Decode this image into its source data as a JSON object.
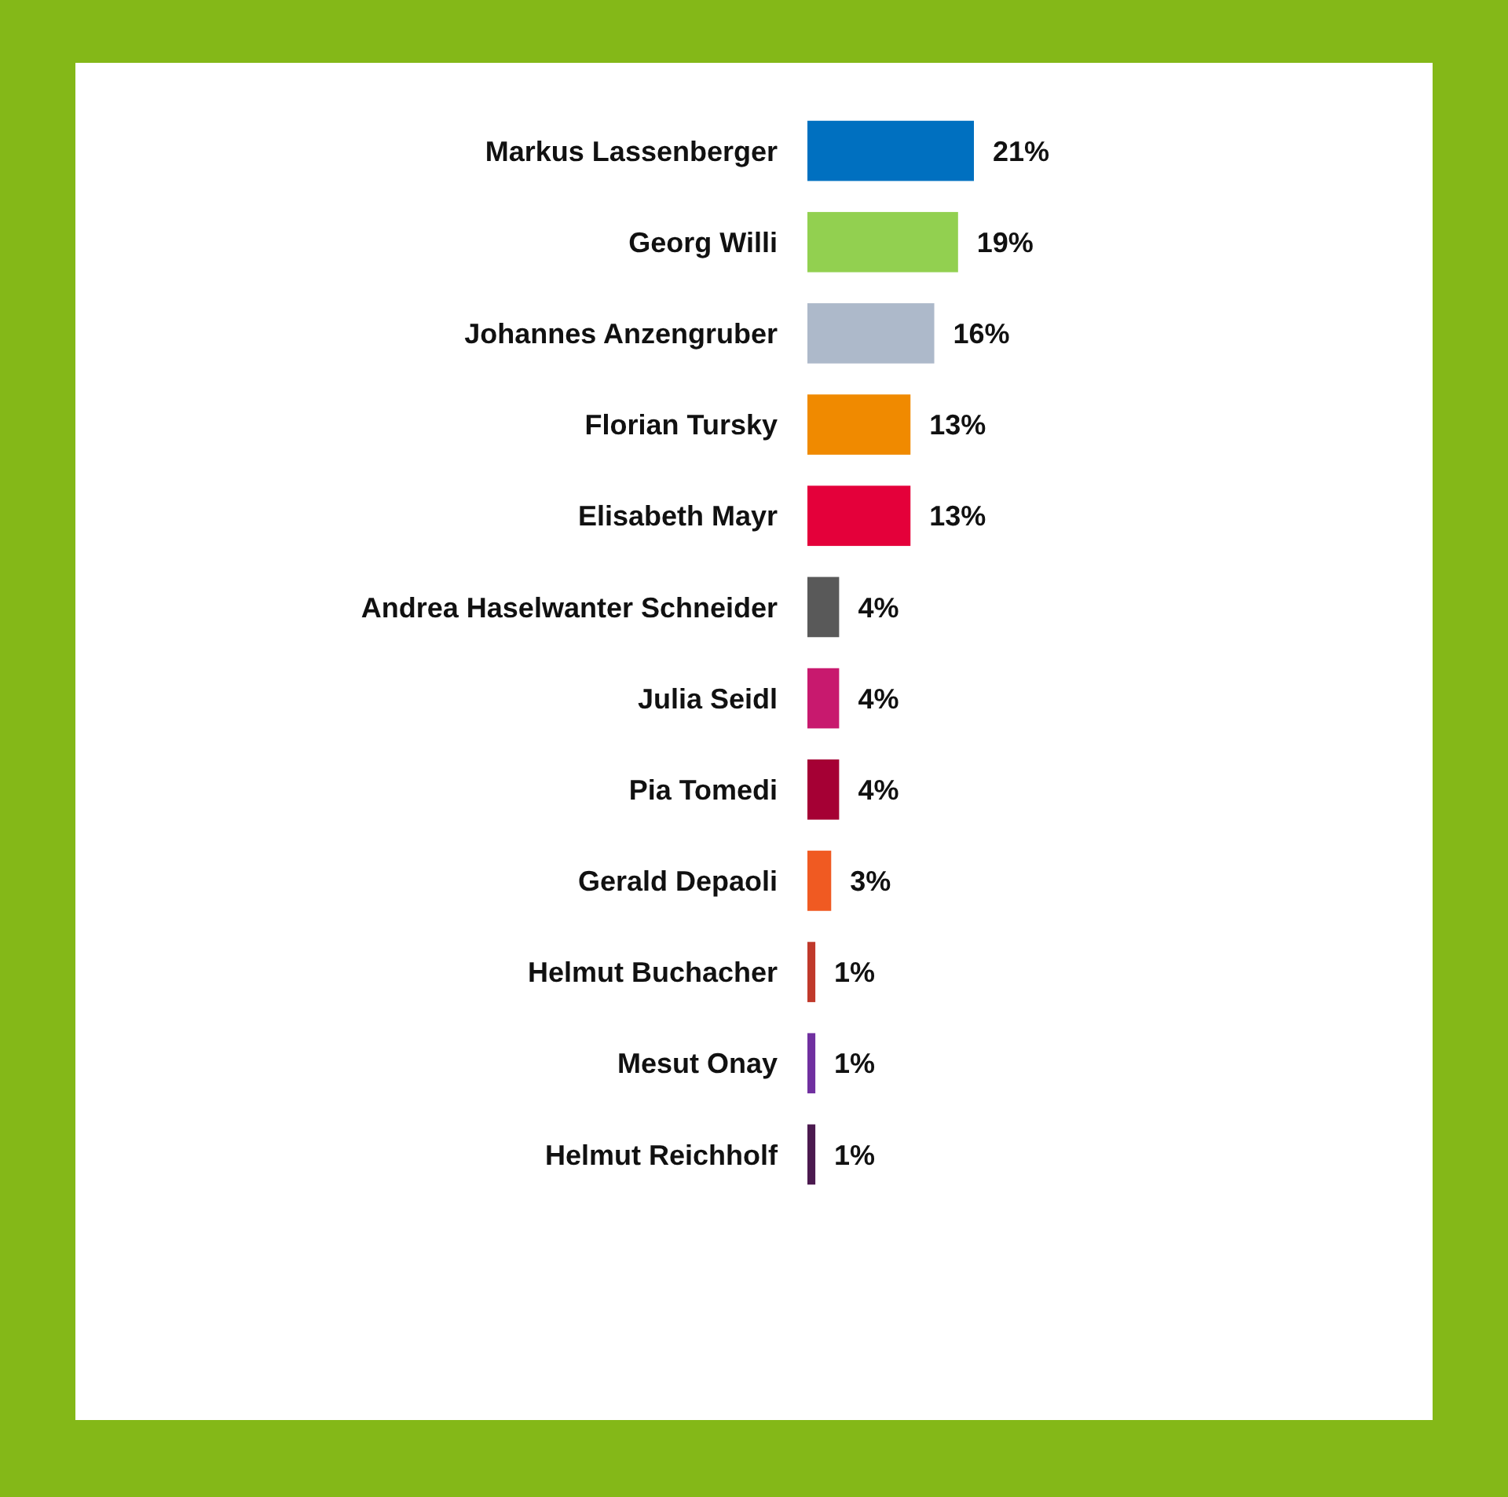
{
  "chart_data": {
    "type": "bar",
    "orientation": "horizontal",
    "categories": [
      "Markus Lassenberger",
      "Georg Willi",
      "Johannes Anzengruber",
      "Florian Tursky",
      "Elisabeth Mayr",
      "Andrea Haselwanter Schneider",
      "Julia Seidl",
      "Pia Tomedi",
      "Gerald Depaoli",
      "Helmut Buchacher",
      "Mesut Onay",
      "Helmut Reichholf"
    ],
    "values": [
      21,
      19,
      16,
      13,
      13,
      4,
      4,
      4,
      3,
      1,
      1,
      1
    ],
    "colors": [
      "#0070c0",
      "#92d050",
      "#adb9ca",
      "#f08a00",
      "#e4003a",
      "#595959",
      "#c8196e",
      "#a50034",
      "#f05a22",
      "#c0392b",
      "#7030a0",
      "#4b1a4f"
    ],
    "value_labels": [
      "21%",
      "19%",
      "16%",
      "13%",
      "13%",
      "4%",
      "4%",
      "4%",
      "3%",
      "1%",
      "1%",
      "1%"
    ],
    "tick_labels": "y"
  }
}
